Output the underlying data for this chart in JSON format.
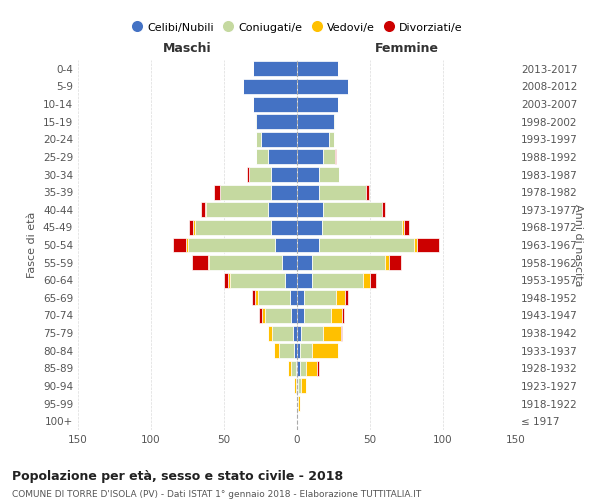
{
  "age_groups": [
    "100+",
    "95-99",
    "90-94",
    "85-89",
    "80-84",
    "75-79",
    "70-74",
    "65-69",
    "60-64",
    "55-59",
    "50-54",
    "45-49",
    "40-44",
    "35-39",
    "30-34",
    "25-29",
    "20-24",
    "15-19",
    "10-14",
    "5-9",
    "0-4"
  ],
  "birth_years": [
    "≤ 1917",
    "1918-1922",
    "1923-1927",
    "1928-1932",
    "1933-1937",
    "1938-1942",
    "1943-1947",
    "1948-1952",
    "1953-1957",
    "1958-1962",
    "1963-1967",
    "1968-1972",
    "1973-1977",
    "1978-1982",
    "1983-1987",
    "1988-1992",
    "1993-1997",
    "1998-2002",
    "2003-2007",
    "2008-2012",
    "2013-2017"
  ],
  "colors": {
    "celibi": "#4472c4",
    "coniugati": "#c5d9a0",
    "vedovi": "#ffc000",
    "divorziati": "#cc0000",
    "border": "#ffffff"
  },
  "males": {
    "celibi": [
      0,
      0,
      0,
      1,
      2,
      3,
      4,
      5,
      8,
      10,
      15,
      18,
      20,
      18,
      18,
      20,
      25,
      28,
      30,
      37,
      30
    ],
    "coniugati": [
      0,
      0,
      1,
      3,
      10,
      14,
      18,
      22,
      38,
      50,
      60,
      52,
      42,
      35,
      15,
      8,
      3,
      1,
      0,
      0,
      0
    ],
    "vedovi": [
      0,
      0,
      1,
      2,
      4,
      3,
      2,
      2,
      1,
      1,
      1,
      1,
      1,
      0,
      0,
      0,
      0,
      0,
      0,
      0,
      0
    ],
    "divorziati": [
      0,
      0,
      0,
      0,
      0,
      0,
      2,
      2,
      3,
      11,
      9,
      3,
      3,
      4,
      1,
      0,
      0,
      0,
      0,
      0,
      0
    ]
  },
  "females": {
    "celibi": [
      0,
      0,
      1,
      2,
      2,
      3,
      5,
      5,
      10,
      10,
      15,
      17,
      18,
      15,
      15,
      18,
      22,
      25,
      28,
      35,
      28
    ],
    "coniugati": [
      0,
      1,
      2,
      4,
      8,
      15,
      18,
      22,
      35,
      50,
      65,
      55,
      40,
      32,
      14,
      8,
      3,
      1,
      0,
      0,
      0
    ],
    "vedovi": [
      0,
      1,
      3,
      8,
      18,
      12,
      8,
      6,
      5,
      3,
      2,
      1,
      0,
      0,
      0,
      0,
      0,
      0,
      0,
      0,
      0
    ],
    "divorziati": [
      0,
      0,
      0,
      1,
      0,
      1,
      1,
      2,
      4,
      8,
      15,
      4,
      2,
      2,
      0,
      1,
      0,
      0,
      0,
      0,
      0
    ]
  },
  "title": "Popolazione per età, sesso e stato civile - 2018",
  "subtitle": "COMUNE DI TORRE D'ISOLA (PV) - Dati ISTAT 1° gennaio 2018 - Elaborazione TUTTITALIA.IT",
  "xlabel_left": "Maschi",
  "xlabel_right": "Femmine",
  "ylabel_left": "Fasce di età",
  "ylabel_right": "Anni di nascita",
  "xlim": 150,
  "legend_labels": [
    "Celibi/Nubili",
    "Coniugati/e",
    "Vedovi/e",
    "Divorziati/e"
  ],
  "background_color": "#ffffff",
  "grid_color": "#cccccc"
}
